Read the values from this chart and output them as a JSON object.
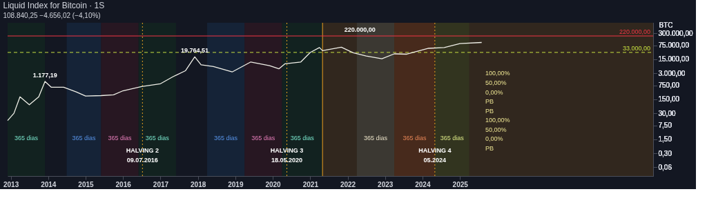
{
  "chart_data": {
    "type": "line",
    "title": "Liquid Index for Bitcoin · 1S",
    "subtitle": "108.840,25  −4.656,02 (−4,10%)",
    "ylabel": "BTC",
    "log": true,
    "grid": false,
    "line_style": "solid",
    "marker": "none",
    "xlim": [
      "2012-12",
      "2030-03"
    ],
    "xticks": [
      {
        "value": "2013",
        "label": "2013"
      },
      {
        "value": "2014",
        "label": "2014"
      },
      {
        "value": "2015",
        "label": "2015"
      },
      {
        "value": "2016",
        "label": "2016"
      },
      {
        "value": "2017",
        "label": "2017"
      },
      {
        "value": "2018",
        "label": "2018"
      },
      {
        "value": "2019",
        "label": "2019"
      },
      {
        "value": "2020",
        "label": "2020"
      },
      {
        "value": "2021",
        "label": "2021"
      },
      {
        "value": "2022",
        "label": "2022"
      },
      {
        "value": "2023",
        "label": "2023"
      },
      {
        "value": "2024",
        "label": "2024"
      },
      {
        "value": "2025",
        "label": "2025"
      }
    ],
    "ylim": [
      0.022,
      1000000
    ],
    "yticks": [
      {
        "value": 0.06,
        "label": "0,06"
      },
      {
        "value": 0.3,
        "label": "0,30"
      },
      {
        "value": 1.5,
        "label": "1,50"
      },
      {
        "value": 7.5,
        "label": "7,50"
      },
      {
        "value": 30,
        "label": "30,00"
      },
      {
        "value": 150,
        "label": "150,00"
      },
      {
        "value": 750,
        "label": "750,00"
      },
      {
        "value": 3000,
        "label": "3.000,00"
      },
      {
        "value": 15000,
        "label": "15.000,00"
      },
      {
        "value": 75000,
        "label": "75.000,00"
      },
      {
        "value": 300000,
        "label": "300.000,00"
      }
    ],
    "series": [
      {
        "color": "#f0f0e8",
        "x": [
          "2012-12",
          "2013-02",
          "2013-04",
          "2013-07",
          "2013-10",
          "2013-12",
          "2014-02",
          "2014-06",
          "2014-10",
          "2015-01",
          "2015-06",
          "2015-10",
          "2016-01",
          "2016-07",
          "2017-01",
          "2017-05",
          "2017-09",
          "2017-12",
          "2018-02",
          "2018-06",
          "2018-12",
          "2019-06",
          "2019-12",
          "2020-03",
          "2020-05",
          "2020-10",
          "2021-01",
          "2021-04",
          "2021-05",
          "2021-11",
          "2022-03",
          "2022-07",
          "2022-12",
          "2023-04",
          "2023-08",
          "2024-03",
          "2024-08",
          "2025-01",
          "2025-08"
        ],
        "values": [
          13,
          30,
          200,
          80,
          200,
          1177.19,
          600,
          600,
          350,
          220,
          230,
          250,
          400,
          650,
          900,
          2000,
          4000,
          19764.51,
          8000,
          6500,
          3500,
          11000,
          7200,
          5000,
          9000,
          11000,
          33000,
          58000,
          40600,
          60500,
          31000,
          22000,
          15800,
          28000,
          27000,
          53000,
          58000,
          91000,
          104000
        ]
      }
    ],
    "bands": [
      {
        "axis": "x",
        "from": "2012-12",
        "to": "2013-12",
        "label": "365 dias",
        "color": "#132420"
      },
      {
        "axis": "x",
        "from": "2014-07",
        "to": "2015-06",
        "label": "365 dias",
        "color": "#16253a"
      },
      {
        "axis": "x",
        "from": "2015-06",
        "to": "2016-06",
        "label": "365 dias",
        "color": "#2a1722"
      },
      {
        "axis": "x",
        "from": "2016-06",
        "to": "2017-06",
        "label": "365 dias",
        "color": "#132420"
      },
      {
        "axis": "x",
        "from": "2018-04",
        "to": "2019-04",
        "label": "365 dias",
        "color": "#16253a"
      },
      {
        "axis": "x",
        "from": "2019-04",
        "to": "2020-04",
        "label": "365 dias",
        "color": "#2a1722"
      },
      {
        "axis": "x",
        "from": "2020-04",
        "to": "2021-05",
        "label": "365 dias",
        "color": "#132420"
      },
      {
        "axis": "x",
        "from": "2021-05",
        "to": "2030-03",
        "color": "#35291e"
      },
      {
        "axis": "x",
        "from": "2022-04",
        "to": "2023-04",
        "label": "365 dias",
        "color": "#3d3b34"
      },
      {
        "axis": "x",
        "from": "2023-04",
        "to": "2024-05",
        "label": "365 dias",
        "color": "#4a2b1c"
      },
      {
        "axis": "x",
        "from": "2024-05",
        "to": "2025-04",
        "label": "365 dias",
        "color": "#33361f"
      }
    ],
    "ref_lines": [
      {
        "axis": "x",
        "value": "2016-07-09",
        "label": "HALVING 2",
        "color": "#e8a020",
        "line_style": "dotted"
      },
      {
        "axis": "x",
        "value": "2020-05-18",
        "label": "HALVING 3",
        "color": "#e8a020",
        "line_style": "dotted"
      },
      {
        "axis": "x",
        "value": "2024-05",
        "label": "HALVING 4",
        "color": "#e8a020",
        "line_style": "dotted"
      },
      {
        "axis": "x",
        "value": "2021-05",
        "color": "#f0a020",
        "line_style": "solid"
      },
      {
        "axis": "y",
        "value": 220000,
        "label": "220.000,00",
        "color": "#f23645",
        "line_style": "solid"
      },
      {
        "axis": "y",
        "value": 33000,
        "label": "33.000,00",
        "color": "#c8e040",
        "line_style": "dashed"
      }
    ],
    "annotations": [
      {
        "text": "09.07.2016",
        "x": "2016-07-09",
        "y": 0.065
      },
      {
        "text": "18.05.2020",
        "x": "2020-05-18",
        "y": 0.065
      },
      {
        "text": "05.2024",
        "x": "2024-05",
        "y": 0.065
      },
      {
        "text": "1.177,19",
        "x": "2013-12",
        "y": 1177.19
      },
      {
        "text": "19.764,51",
        "x": "2017-12",
        "y": 19764.51
      },
      {
        "text": "220.000,00",
        "x": "2022-05",
        "y": 220000
      },
      "100,00%",
      "50,00%",
      "0,00%",
      "PB",
      "PB",
      "100,00%",
      "50,00%",
      "0,00%",
      "PB"
    ]
  }
}
